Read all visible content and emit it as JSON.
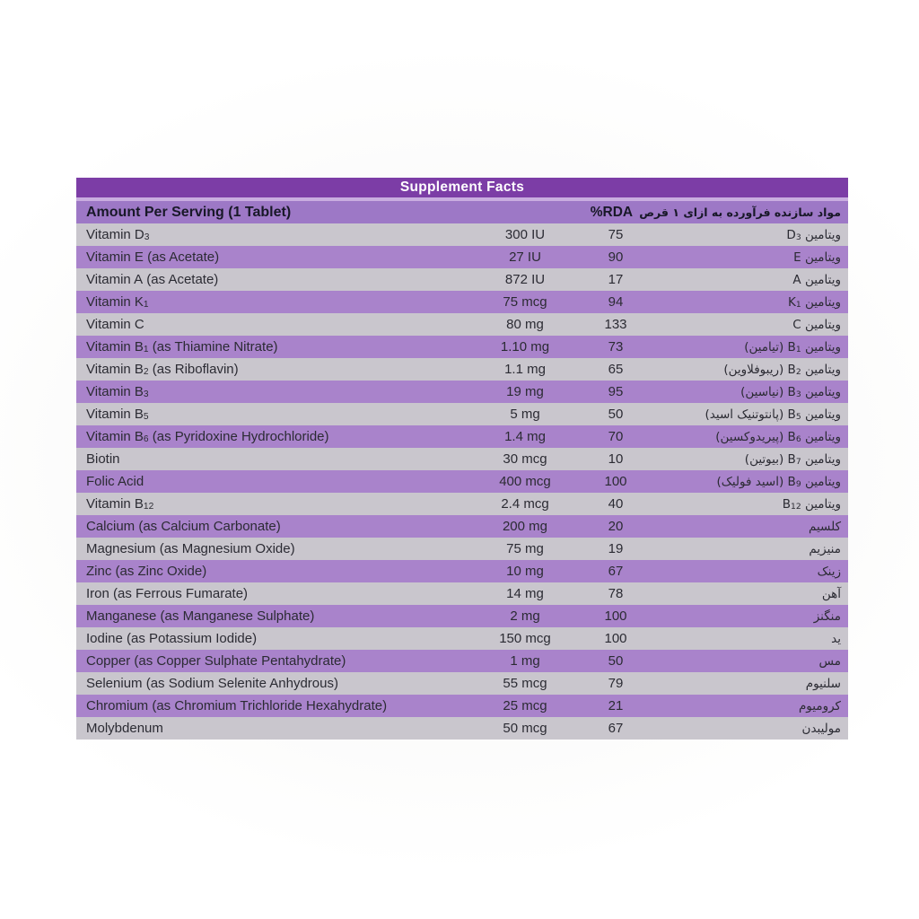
{
  "title": "Supplement Facts",
  "columns": {
    "en": "Amount Per Serving (1 Tablet)",
    "rda": "%RDA",
    "fa": "مواد سازنده فرآورده به ازای ۱ قرص"
  },
  "colors": {
    "title_bg": "#7c3da6",
    "title_text": "#ffffff",
    "band_sep": "#c9ade0",
    "header_bg": "#9d78c6",
    "stripe_purple": "#a983cb",
    "stripe_light": "#c9c6cd",
    "row_text": "#2b2b33"
  },
  "rows": [
    {
      "en_pre": "Vitamin D",
      "en_sub": "3",
      "en_suf": "",
      "amount": "300 IU",
      "rda": "75",
      "fa_pre": "ویتامین ",
      "fa_latin": "D",
      "fa_sub": "3",
      "fa_suf": ""
    },
    {
      "en_pre": "Vitamin E",
      "en_sub": "",
      "en_suf": " (as Acetate)",
      "amount": "27 IU",
      "rda": "90",
      "fa_pre": "ویتامین ",
      "fa_latin": "E",
      "fa_sub": "",
      "fa_suf": ""
    },
    {
      "en_pre": "Vitamin A",
      "en_sub": "",
      "en_suf": " (as Acetate)",
      "amount": "872 IU",
      "rda": "17",
      "fa_pre": "ویتامین ",
      "fa_latin": "A",
      "fa_sub": "",
      "fa_suf": ""
    },
    {
      "en_pre": "Vitamin K",
      "en_sub": "1",
      "en_suf": "",
      "amount": "75 mcg",
      "rda": "94",
      "fa_pre": "ویتامین ",
      "fa_latin": "K",
      "fa_sub": "1",
      "fa_suf": ""
    },
    {
      "en_pre": "Vitamin C",
      "en_sub": "",
      "en_suf": "",
      "amount": "80 mg",
      "rda": "133",
      "fa_pre": "ویتامین ",
      "fa_latin": "C",
      "fa_sub": "",
      "fa_suf": ""
    },
    {
      "en_pre": "Vitamin B",
      "en_sub": "1",
      "en_suf": " (as Thiamine Nitrate)",
      "amount": "1.10 mg",
      "rda": "73",
      "fa_pre": "ویتامین ",
      "fa_latin": "B",
      "fa_sub": "1",
      "fa_suf": " (تیامین)"
    },
    {
      "en_pre": "Vitamin B",
      "en_sub": "2",
      "en_suf": " (as Riboflavin)",
      "amount": "1.1 mg",
      "rda": "65",
      "fa_pre": "ویتامین ",
      "fa_latin": "B",
      "fa_sub": "2",
      "fa_suf": " (ریبوفلاوین)"
    },
    {
      "en_pre": "Vitamin B",
      "en_sub": "3",
      "en_suf": "",
      "amount": "19 mg",
      "rda": "95",
      "fa_pre": "ویتامین ",
      "fa_latin": "B",
      "fa_sub": "3",
      "fa_suf": " (نیاسین)"
    },
    {
      "en_pre": "Vitamin B",
      "en_sub": "5",
      "en_suf": "",
      "amount": "5 mg",
      "rda": "50",
      "fa_pre": "ویتامین ",
      "fa_latin": "B",
      "fa_sub": "5",
      "fa_suf": " (پانتوتنیک اسید)"
    },
    {
      "en_pre": "Vitamin B",
      "en_sub": "6",
      "en_suf": " (as Pyridoxine Hydrochloride)",
      "amount": "1.4 mg",
      "rda": "70",
      "fa_pre": "ویتامین ",
      "fa_latin": "B",
      "fa_sub": "6",
      "fa_suf": " (پیریدوکسین)"
    },
    {
      "en_pre": "Biotin",
      "en_sub": "",
      "en_suf": "",
      "amount": "30 mcg",
      "rda": "10",
      "fa_pre": "ویتامین ",
      "fa_latin": "B",
      "fa_sub": "7",
      "fa_suf": " (بیوتین)"
    },
    {
      "en_pre": "Folic Acid",
      "en_sub": "",
      "en_suf": "",
      "amount": "400 mcg",
      "rda": "100",
      "fa_pre": "ویتامین ",
      "fa_latin": "B",
      "fa_sub": "9",
      "fa_suf": " (اسید فولیک)"
    },
    {
      "en_pre": "Vitamin B",
      "en_sub": "12",
      "en_suf": "",
      "amount": "2.4 mcg",
      "rda": "40",
      "fa_pre": "ویتامین ",
      "fa_latin": "B",
      "fa_sub": "12",
      "fa_suf": ""
    },
    {
      "en_pre": "Calcium (as Calcium Carbonate)",
      "en_sub": "",
      "en_suf": "",
      "amount": "200 mg",
      "rda": "20",
      "fa_pre": "کلسیم",
      "fa_latin": "",
      "fa_sub": "",
      "fa_suf": ""
    },
    {
      "en_pre": "Magnesium (as Magnesium Oxide)",
      "en_sub": "",
      "en_suf": "",
      "amount": "75 mg",
      "rda": "19",
      "fa_pre": "منیزیم",
      "fa_latin": "",
      "fa_sub": "",
      "fa_suf": ""
    },
    {
      "en_pre": "Zinc (as Zinc Oxide)",
      "en_sub": "",
      "en_suf": "",
      "amount": "10 mg",
      "rda": "67",
      "fa_pre": "زینک",
      "fa_latin": "",
      "fa_sub": "",
      "fa_suf": ""
    },
    {
      "en_pre": "Iron (as Ferrous Fumarate)",
      "en_sub": "",
      "en_suf": "",
      "amount": "14 mg",
      "rda": "78",
      "fa_pre": "آهن",
      "fa_latin": "",
      "fa_sub": "",
      "fa_suf": ""
    },
    {
      "en_pre": "Manganese (as Manganese Sulphate)",
      "en_sub": "",
      "en_suf": "",
      "amount": "2 mg",
      "rda": "100",
      "fa_pre": "منگنز",
      "fa_latin": "",
      "fa_sub": "",
      "fa_suf": ""
    },
    {
      "en_pre": "Iodine (as Potassium Iodide)",
      "en_sub": "",
      "en_suf": "",
      "amount": "150 mcg",
      "rda": "100",
      "fa_pre": "ید",
      "fa_latin": "",
      "fa_sub": "",
      "fa_suf": ""
    },
    {
      "en_pre": "Copper (as Copper Sulphate Pentahydrate)",
      "en_sub": "",
      "en_suf": "",
      "amount": "1 mg",
      "rda": "50",
      "fa_pre": "مس",
      "fa_latin": "",
      "fa_sub": "",
      "fa_suf": ""
    },
    {
      "en_pre": "Selenium (as Sodium Selenite Anhydrous)",
      "en_sub": "",
      "en_suf": "",
      "amount": "55 mcg",
      "rda": "79",
      "fa_pre": "سلنیوم",
      "fa_latin": "",
      "fa_sub": "",
      "fa_suf": ""
    },
    {
      "en_pre": "Chromium (as Chromium Trichloride Hexahydrate)",
      "en_sub": "",
      "en_suf": "",
      "amount": "25 mcg",
      "rda": "21",
      "fa_pre": "کرومیوم",
      "fa_latin": "",
      "fa_sub": "",
      "fa_suf": ""
    },
    {
      "en_pre": "Molybdenum",
      "en_sub": "",
      "en_suf": "",
      "amount": "50 mcg",
      "rda": "67",
      "fa_pre": "مولیبدن",
      "fa_latin": "",
      "fa_sub": "",
      "fa_suf": ""
    }
  ]
}
